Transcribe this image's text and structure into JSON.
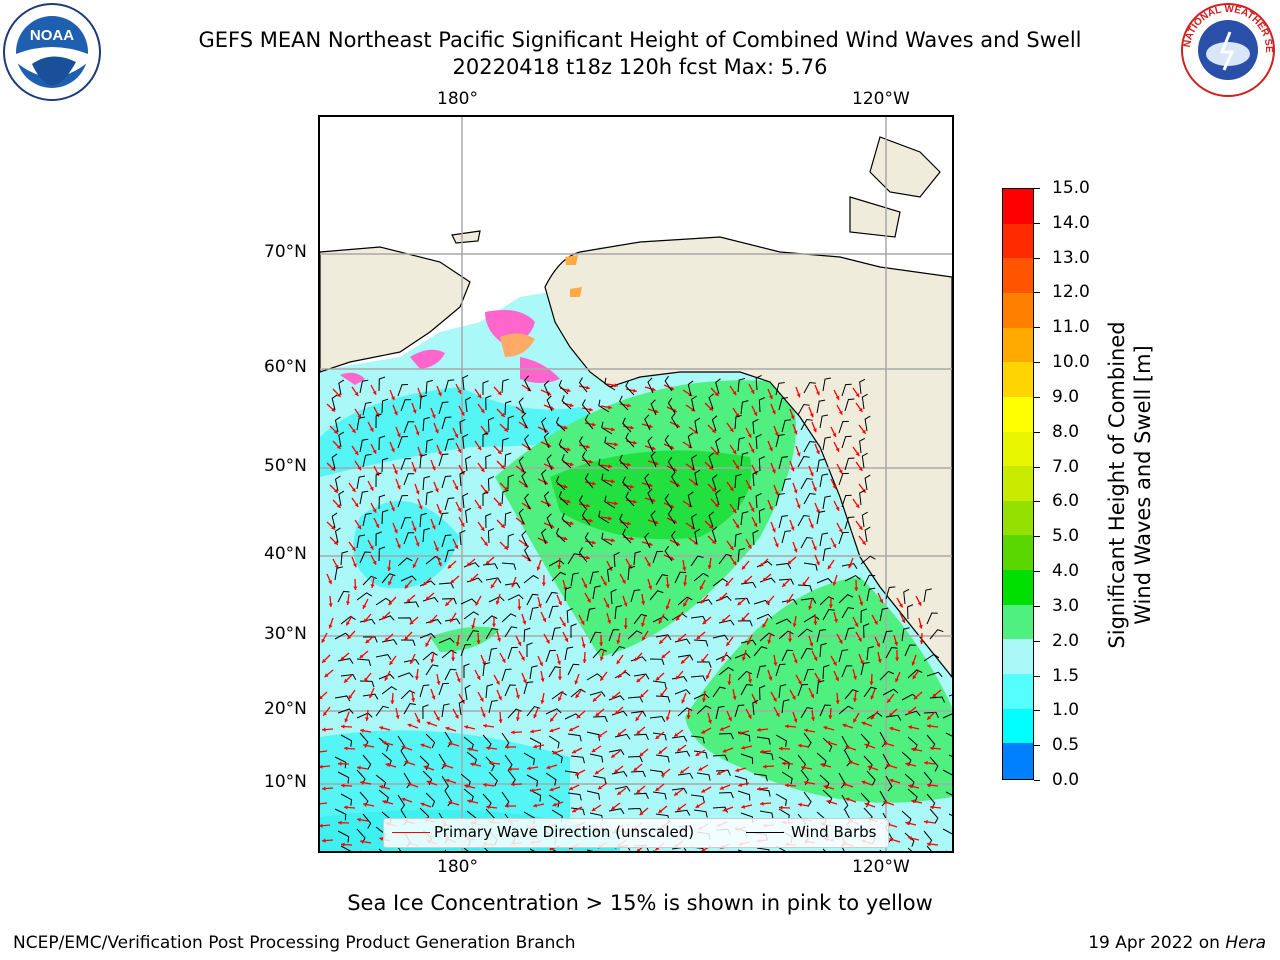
{
  "header": {
    "title_line1": "GEFS MEAN Northeast Pacific Significant Height of Combined Wind Waves and Swell",
    "title_line2": "20220418 t18z 120h fcst   Max: 5.76"
  },
  "logos": {
    "left": {
      "name": "noaa-logo",
      "text": "NOAA"
    },
    "right": {
      "name": "nws-logo",
      "text": "NATIONAL WEATHER SERVICE"
    }
  },
  "map": {
    "top_lon_labels": [
      "180°",
      "120°W"
    ],
    "bottom_lon_labels": [
      "180°",
      "120°W"
    ],
    "lat_labels": [
      "70°N",
      "60°N",
      "50°N",
      "40°N",
      "30°N",
      "20°N",
      "10°N"
    ],
    "colors": {
      "ocean_low": "#aaf8f8",
      "land": "#efecdc",
      "wave_dir": "#ff0000",
      "wind_barb": "#000000"
    }
  },
  "legend": {
    "wave_direction": "Primary Wave Direction (unscaled)",
    "wind_barbs": "Wind Barbs"
  },
  "colorbar": {
    "title_line1": "Significant Height of Combined",
    "title_line2": "Wind Waves and Swell [m]",
    "ticks": [
      "15.0",
      "14.0",
      "13.0",
      "12.0",
      "11.0",
      "10.0",
      "9.0",
      "8.0",
      "7.0",
      "6.0",
      "5.0",
      "4.0",
      "3.0",
      "2.0",
      "1.5",
      "1.0",
      "0.5",
      "0.0"
    ],
    "colors": [
      "#ff0000",
      "#ff2a00",
      "#ff5500",
      "#ff8000",
      "#ffaa00",
      "#ffd500",
      "#ffff00",
      "#e8f500",
      "#c8eb00",
      "#96e000",
      "#5ad600",
      "#00e000",
      "#50f080",
      "#aaf8f8",
      "#55ffff",
      "#00ffff",
      "#0080ff",
      "#0000ff"
    ]
  },
  "footer": {
    "note": "Sea Ice Concentration > 15% is shown in pink to yellow",
    "left": "NCEP/EMC/Verification Post Processing Product Generation Branch",
    "right_date": "19 Apr 2022 on ",
    "right_host": "Hera"
  }
}
